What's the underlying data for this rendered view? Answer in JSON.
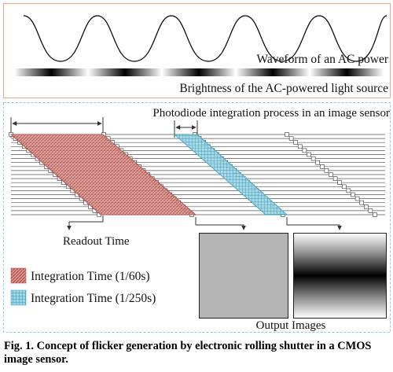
{
  "top_panel": {
    "waveform_label": "Waveform of an AC power",
    "brightness_label": "Brightness of the AC-powered light source"
  },
  "bottom_panel": {
    "title": "Photodiode integration process in an image sensor",
    "readout_label": "Readout Time",
    "output_label": "Output Images",
    "legend": [
      {
        "label": "Integration Time (1/60s)",
        "color": "#c0504d"
      },
      {
        "label": "Integration Time (1/250s)",
        "color": "#4bacc6"
      }
    ]
  },
  "caption": "Fig. 1. Concept of flicker generation by electronic rolling shutter in a CMOS image sensor."
}
